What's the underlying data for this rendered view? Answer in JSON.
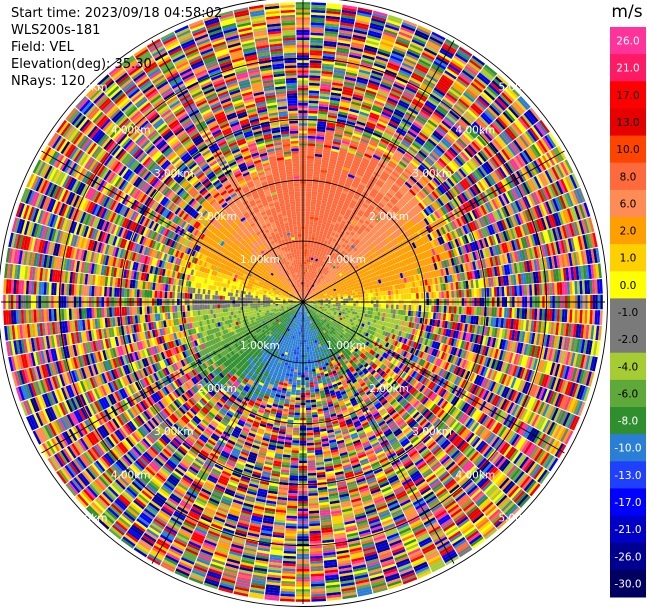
{
  "header": {
    "start_time": "Start time: 2023/09/18 04:58:02",
    "instrument": "WLS200s-181",
    "field": "Field: VEL",
    "elevation": "Elevation(deg): 35.30",
    "nrays": "NRays: 120"
  },
  "chart_data": {
    "type": "heatmap",
    "projection": "polar-ppi",
    "field": "VEL",
    "nrays": 120,
    "elevation_deg": 35.3,
    "range_rings_km": [
      1.0,
      2.0,
      3.0,
      4.0,
      5.0
    ],
    "range_ring_labels": [
      "1.00km",
      "2.00km",
      "3.00km",
      "4.00km",
      "5.00km"
    ],
    "max_range_km": 7.1,
    "azimuth_lines_deg": [
      0,
      30,
      60,
      90,
      120,
      150,
      180,
      210,
      240,
      270,
      300,
      330
    ],
    "colorbar": {
      "unit": "m/s",
      "ticks": [
        "26.0",
        "21.0",
        "17.0",
        "13.0",
        "10.0",
        "8.0",
        "6.0",
        "2.0",
        "1.0",
        "0.0",
        "-1.0",
        "-2.0",
        "-4.0",
        "-6.0",
        "-8.0",
        "-10.0",
        "-13.0",
        "-17.0",
        "-21.0",
        "-26.0",
        "-30.0"
      ],
      "colors": [
        "#ff3399",
        "#ff1a66",
        "#ff0000",
        "#e60000",
        "#ff4400",
        "#ff6a3c",
        "#ff8c55",
        "#ffa000",
        "#ffd000",
        "#ffff00",
        "#7a7a7a",
        "#7a7a7a",
        "#a6cc33",
        "#5fa83a",
        "#2f8f2f",
        "#2a7fd4",
        "#2040ff",
        "#0000ff",
        "#0000c8",
        "#000090",
        "#000060"
      ]
    },
    "pattern_summary": {
      "north_sector_mean_ms": 8.0,
      "northeast_sector_mean_ms": 2.0,
      "south_sector_mean_ms": -6.0,
      "east_west_near_center_ms": 0.0,
      "far_range": "noise"
    }
  }
}
